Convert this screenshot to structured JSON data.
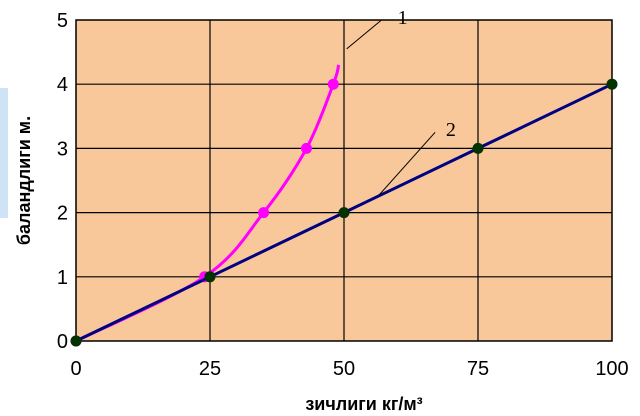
{
  "chart_data": {
    "type": "line",
    "xlabel": "зичлиги кг/м³",
    "ylabel": "баландлиги м.",
    "xlim": [
      0,
      100
    ],
    "ylim": [
      0,
      5
    ],
    "x_ticks": [
      "0",
      "25",
      "50",
      "75",
      "100"
    ],
    "y_ticks": [
      "0",
      "1",
      "2",
      "3",
      "4",
      "5"
    ],
    "grid": true,
    "background_color": "#f9c89a",
    "series": [
      {
        "name": "1",
        "color": "#ff00ff",
        "points": [
          [
            0,
            0
          ],
          [
            24,
            1
          ],
          [
            35,
            2
          ],
          [
            43,
            3
          ],
          [
            48,
            4
          ]
        ],
        "curve_end": [
          49,
          4.3
        ]
      },
      {
        "name": "2",
        "color": "#000080",
        "marker_color": "#003300",
        "points": [
          [
            0,
            0
          ],
          [
            25,
            1
          ],
          [
            50,
            2
          ],
          [
            75,
            3
          ],
          [
            100,
            4
          ]
        ]
      }
    ]
  }
}
